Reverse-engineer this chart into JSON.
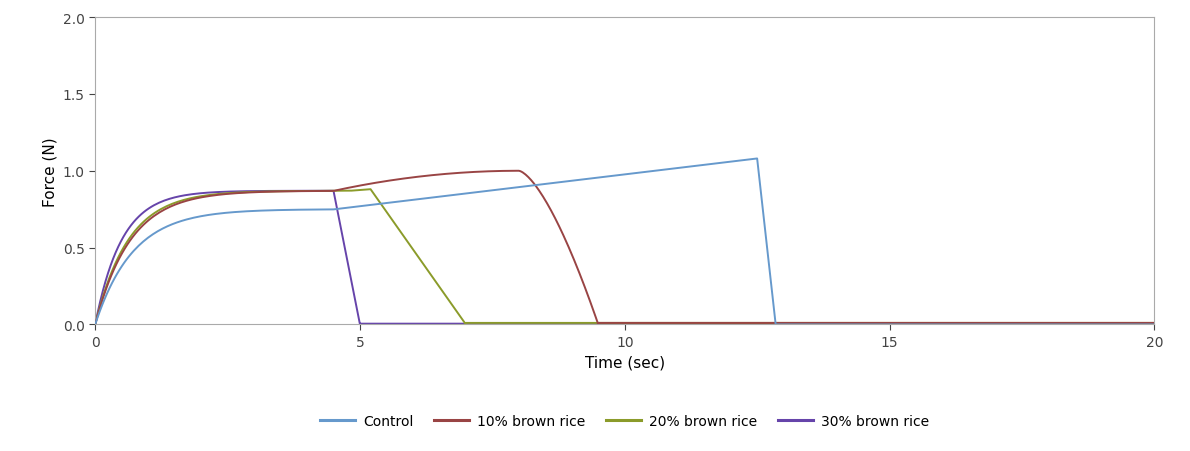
{
  "title": "",
  "xlabel": "Time (sec)",
  "ylabel": "Force (N)",
  "xlim": [
    0,
    20
  ],
  "ylim": [
    0,
    2
  ],
  "yticks": [
    0,
    0.5,
    1.0,
    1.5,
    2.0
  ],
  "xticks": [
    0,
    5,
    10,
    15,
    20
  ],
  "legend_labels": [
    "Control",
    "10% brown rice",
    "20% brown rice",
    "30% brown rice"
  ],
  "colors": {
    "control": "#6699CC",
    "10br": "#994444",
    "20br": "#8B9B2A",
    "30br": "#6644AA"
  },
  "background_color": "#ffffff",
  "figsize": [
    11.9,
    4.52
  ],
  "dpi": 100
}
